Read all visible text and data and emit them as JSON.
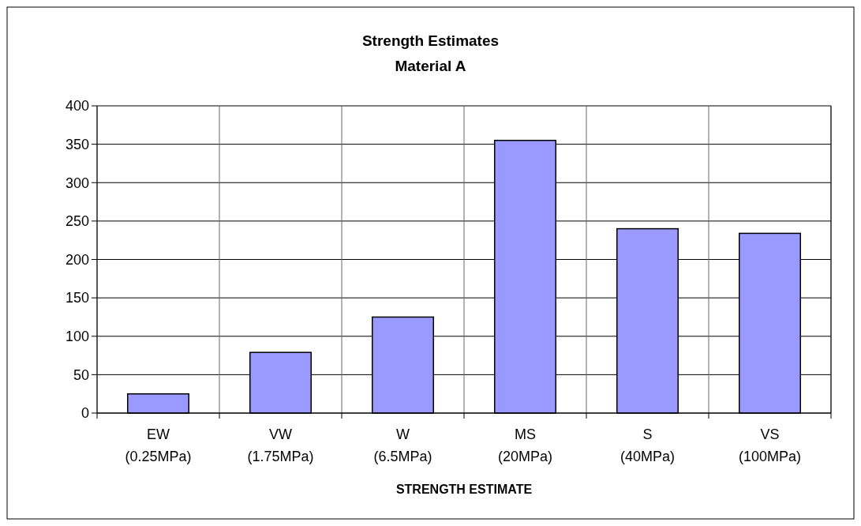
{
  "chart_data": {
    "type": "bar",
    "title": "Strength Estimates",
    "subtitle": "Material A",
    "xlabel": "STRENGTH ESTIMATE",
    "categories": [
      "EW\n(0.25MPa)",
      "VW\n(1.75MPa)",
      "W\n(6.5MPa)",
      "MS\n(20MPa)",
      "S\n(40MPa)",
      "VS\n(100MPa)"
    ],
    "values": [
      25,
      79,
      125,
      355,
      240,
      234
    ],
    "color": "#9999ff",
    "ylim": [
      0,
      400
    ],
    "yticks": [
      0,
      50,
      100,
      150,
      200,
      250,
      300,
      350,
      400
    ],
    "grid": true
  }
}
